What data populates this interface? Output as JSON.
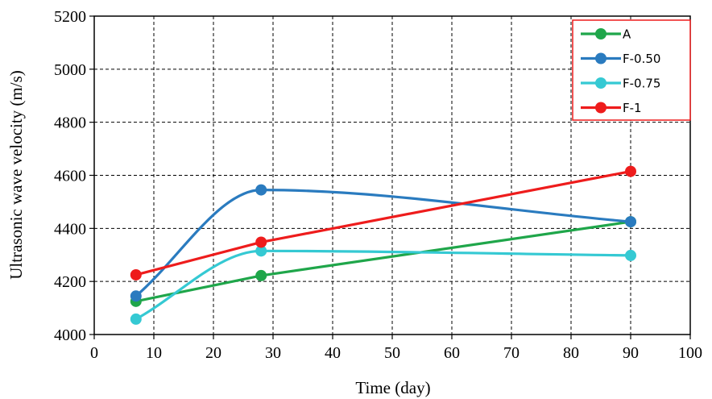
{
  "chart_data": {
    "type": "line",
    "title": "",
    "xlabel": "Time (day)",
    "ylabel": "Ultrasonic wave velocity (m/s)",
    "xlim": [
      0,
      100
    ],
    "ylim": [
      4000,
      5200
    ],
    "xticks": [
      0,
      10,
      20,
      30,
      40,
      50,
      60,
      70,
      80,
      90,
      100
    ],
    "yticks": [
      4000,
      4200,
      4400,
      4600,
      4800,
      5000,
      5200
    ],
    "grid": "dashed",
    "legend_position": "top-right",
    "x": [
      7,
      28,
      90
    ],
    "series": [
      {
        "name": "A",
        "color": "#1fa64a",
        "smooth": false,
        "values": [
          4125,
          4222,
          4425
        ]
      },
      {
        "name": "F-0.50",
        "color": "#2a7bbf",
        "smooth": true,
        "values": [
          4145,
          4545,
          4425
        ]
      },
      {
        "name": "F-0.75",
        "color": "#35c9d3",
        "smooth": true,
        "values": [
          4058,
          4315,
          4298
        ]
      },
      {
        "name": "F-1",
        "color": "#ee1c1c",
        "smooth": false,
        "values": [
          4225,
          4348,
          4615
        ]
      }
    ]
  }
}
